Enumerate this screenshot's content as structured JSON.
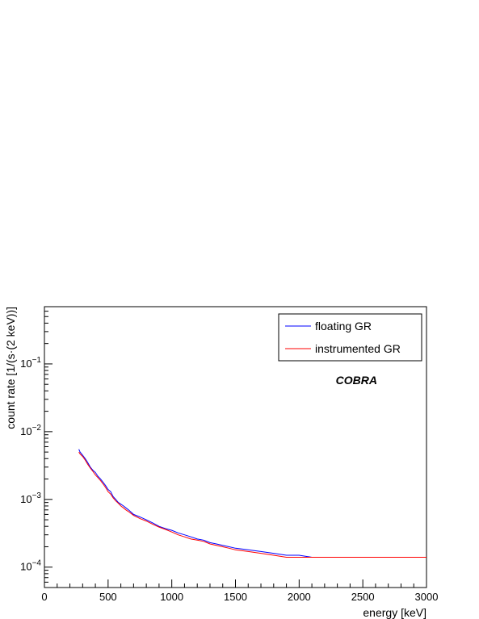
{
  "chart_data": {
    "type": "line",
    "title": "",
    "xlabel": "energy [keV]",
    "ylabel": "count rate [1/(s·(2 keV))]",
    "xlim": [
      0,
      3000
    ],
    "ylim": [
      5e-05,
      0.7
    ],
    "yscale": "log",
    "grid": false,
    "legend_position": "top-right",
    "x_ticks": [
      0,
      500,
      1000,
      1500,
      2000,
      2500,
      3000
    ],
    "x_tick_labels": [
      "0",
      "500",
      "1000",
      "1500",
      "2000",
      "2500",
      "3000"
    ],
    "y_ticks": [
      0.0001,
      0.001,
      0.01,
      0.1
    ],
    "y_tick_labels": [
      {
        "base": "10",
        "exp": "−4"
      },
      {
        "base": "10",
        "exp": "−3"
      },
      {
        "base": "10",
        "exp": "−2"
      },
      {
        "base": "10",
        "exp": "−1"
      }
    ],
    "annotations": [
      {
        "text": "COBRA",
        "x": 2450,
        "y": 0.05
      }
    ],
    "series": [
      {
        "name": "floating GR",
        "color": "#0000ff",
        "x": [
          270,
          280,
          300,
          320,
          340,
          360,
          380,
          400,
          420,
          440,
          460,
          480,
          500,
          520,
          540,
          560,
          580,
          600,
          620,
          640,
          660,
          680,
          700,
          750,
          800,
          850,
          900,
          950,
          1000,
          1050,
          1100,
          1150,
          1200,
          1250,
          1300,
          1350,
          1400,
          1450,
          1500,
          1600,
          1700,
          1800,
          1900,
          2000,
          2100,
          2200,
          2300,
          2400,
          2500,
          2600,
          2700,
          2800,
          2900,
          3000
        ],
        "values": [
          0.0055,
          0.005,
          0.0045,
          0.004,
          0.0035,
          0.003,
          0.0027,
          0.0025,
          0.0022,
          0.002,
          0.0018,
          0.0016,
          0.0014,
          0.0013,
          0.0011,
          0.001,
          0.0009,
          0.00085,
          0.0008,
          0.00075,
          0.0007,
          0.00065,
          0.0006,
          0.00055,
          0.0005,
          0.00045,
          0.0004,
          0.00037,
          0.00035,
          0.00032,
          0.0003,
          0.00028,
          0.00026,
          0.00025,
          0.00023,
          0.00022,
          0.00021,
          0.0002,
          0.00019,
          0.00018,
          0.00017,
          0.00016,
          0.00015,
          0.00015,
          0.00014,
          0.00014,
          0.00014,
          0.00014,
          0.00014,
          0.00014,
          0.00014,
          0.00014,
          0.00014,
          0.00014
        ]
      },
      {
        "name": "instrumented GR",
        "color": "#ff0000",
        "x": [
          270,
          280,
          300,
          320,
          340,
          360,
          380,
          400,
          420,
          440,
          460,
          480,
          500,
          520,
          540,
          560,
          580,
          600,
          620,
          640,
          660,
          680,
          700,
          750,
          800,
          850,
          900,
          950,
          1000,
          1050,
          1100,
          1150,
          1200,
          1250,
          1300,
          1350,
          1400,
          1450,
          1500,
          1600,
          1700,
          1800,
          1900,
          2000,
          2100,
          2200,
          2300,
          2400,
          2500,
          2600,
          2700,
          2800,
          2900,
          3000
        ],
        "values": [
          0.005,
          0.0047,
          0.0043,
          0.0038,
          0.0033,
          0.0029,
          0.0026,
          0.0023,
          0.0021,
          0.0019,
          0.0017,
          0.0015,
          0.0013,
          0.0012,
          0.00105,
          0.00095,
          0.00088,
          0.0008,
          0.00075,
          0.0007,
          0.00066,
          0.00062,
          0.00058,
          0.00052,
          0.00048,
          0.00043,
          0.00039,
          0.00036,
          0.00033,
          0.0003,
          0.00028,
          0.00026,
          0.00025,
          0.00024,
          0.00022,
          0.00021,
          0.0002,
          0.00019,
          0.00018,
          0.00017,
          0.00016,
          0.00015,
          0.00014,
          0.00014,
          0.00014,
          0.00014,
          0.00014,
          0.00014,
          0.00014,
          0.00014,
          0.00014,
          0.00014,
          0.00014,
          0.00014
        ]
      }
    ]
  }
}
